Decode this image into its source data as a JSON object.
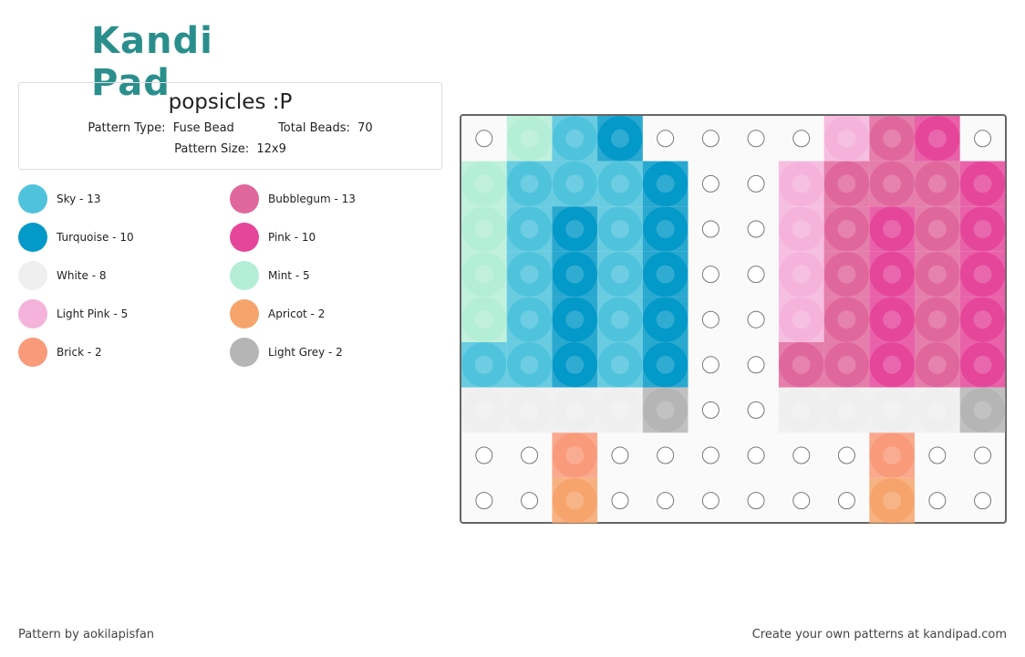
{
  "header": {
    "logo": "Kandi Pad"
  },
  "info": {
    "title": "popsicles :P",
    "pattern_type_label": "Pattern Type:",
    "pattern_type": "Fuse Bead",
    "total_beads_label": "Total Beads:",
    "total_beads": "70",
    "pattern_size_label": "Pattern Size:",
    "pattern_size": "12x9"
  },
  "legend": [
    {
      "label": "Sky - 13",
      "color": "#4fc3dc"
    },
    {
      "label": "Bubblegum - 13",
      "color": "#e0679c"
    },
    {
      "label": "Turquoise - 10",
      "color": "#0399c8"
    },
    {
      "label": "Pink - 10",
      "color": "#e5469a"
    },
    {
      "label": "White - 8",
      "color": "#efefef"
    },
    {
      "label": "Mint - 5",
      "color": "#b4eed7"
    },
    {
      "label": "Light Pink - 5",
      "color": "#f5b3dc"
    },
    {
      "label": "Apricot - 2",
      "color": "#f6a46c"
    },
    {
      "label": "Brick - 2",
      "color": "#f99a7a"
    },
    {
      "label": "Light Grey - 2",
      "color": "#b5b5b5"
    }
  ],
  "pattern": [
    [
      null,
      5,
      0,
      2,
      null,
      null,
      null,
      null,
      6,
      1,
      3,
      null
    ],
    [
      5,
      0,
      0,
      0,
      2,
      null,
      null,
      6,
      1,
      1,
      1,
      3
    ],
    [
      5,
      0,
      2,
      0,
      2,
      null,
      null,
      6,
      1,
      3,
      1,
      3
    ],
    [
      5,
      0,
      2,
      0,
      2,
      null,
      null,
      6,
      1,
      3,
      1,
      3
    ],
    [
      5,
      0,
      2,
      0,
      2,
      null,
      null,
      6,
      1,
      3,
      1,
      3
    ],
    [
      0,
      0,
      2,
      0,
      2,
      null,
      null,
      1,
      1,
      3,
      1,
      3
    ],
    [
      4,
      4,
      4,
      4,
      9,
      null,
      null,
      4,
      4,
      4,
      4,
      9
    ],
    [
      null,
      null,
      8,
      null,
      null,
      null,
      null,
      null,
      null,
      8,
      null,
      null
    ],
    [
      null,
      null,
      7,
      null,
      null,
      null,
      null,
      null,
      null,
      7,
      null,
      null
    ]
  ],
  "footer": {
    "author": "Pattern by aokilapisfan",
    "link": "Create your own patterns at kandipad.com"
  }
}
